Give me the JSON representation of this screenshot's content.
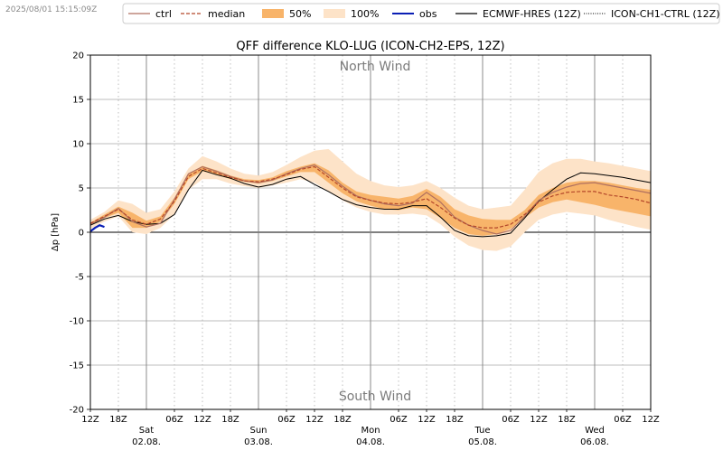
{
  "timestamp": "2025/08/01 15:15:09Z",
  "colors": {
    "band100": "#fde3c8",
    "band50": "#f8b46a",
    "median": "#b4472a",
    "ctrl": "#b07060",
    "obs": "#0b1fb5",
    "hres": "#000000",
    "grid_dotted": "#b0b0b0",
    "day_line": "#7f7f7f"
  },
  "chart_data": {
    "type": "line",
    "title": "QFF difference KLO-LUG (ICON-CH2-EPS, 12Z)",
    "ylabel": "Δp [hPa]",
    "xlabel": "",
    "ylim": [
      -20,
      20
    ],
    "xlim": [
      0,
      120
    ],
    "y_ticks": [
      20,
      15,
      10,
      5,
      0,
      -5,
      -10,
      -15,
      -20
    ],
    "x_ticks": [
      {
        "h": 0,
        "label": "12Z"
      },
      {
        "h": 6,
        "label": "18Z"
      },
      {
        "h": 18,
        "label": "06Z"
      },
      {
        "h": 24,
        "label": "12Z"
      },
      {
        "h": 30,
        "label": "18Z"
      },
      {
        "h": 42,
        "label": "06Z"
      },
      {
        "h": 48,
        "label": "12Z"
      },
      {
        "h": 54,
        "label": "18Z"
      },
      {
        "h": 66,
        "label": "06Z"
      },
      {
        "h": 72,
        "label": "12Z"
      },
      {
        "h": 78,
        "label": "18Z"
      },
      {
        "h": 90,
        "label": "06Z"
      },
      {
        "h": 96,
        "label": "12Z"
      },
      {
        "h": 102,
        "label": "18Z"
      },
      {
        "h": 114,
        "label": "06Z"
      },
      {
        "h": 120,
        "label": "12Z"
      }
    ],
    "day_labels": [
      {
        "h": 12,
        "day": "Sat",
        "date": "02.08."
      },
      {
        "h": 36,
        "day": "Sun",
        "date": "03.08."
      },
      {
        "h": 60,
        "day": "Mon",
        "date": "04.08."
      },
      {
        "h": 84,
        "day": "Tue",
        "date": "05.08."
      },
      {
        "h": 108,
        "day": "Wed",
        "date": "06.08."
      }
    ],
    "annotations": {
      "north": "North Wind",
      "south": "South Wind",
      "divider_h": 60
    },
    "legend": [
      {
        "key": "ctrl",
        "label": "ctrl"
      },
      {
        "key": "median",
        "label": "median"
      },
      {
        "key": "band50",
        "label": "50%"
      },
      {
        "key": "band100",
        "label": "100%"
      },
      {
        "key": "obs",
        "label": "obs"
      },
      {
        "key": "hres",
        "label": "ECMWF-HRES (12Z)"
      },
      {
        "key": "ch1",
        "label": "ICON-CH1-CTRL (12Z)"
      }
    ],
    "x": [
      0,
      3,
      6,
      9,
      12,
      15,
      18,
      21,
      24,
      27,
      30,
      33,
      36,
      39,
      42,
      45,
      48,
      51,
      54,
      57,
      60,
      63,
      66,
      69,
      72,
      75,
      78,
      81,
      84,
      87,
      90,
      93,
      96,
      99,
      102,
      105,
      108,
      111,
      114,
      117,
      120
    ],
    "series": [
      {
        "name": "100% min",
        "values": [
          0.4,
          1.2,
          1.8,
          0.0,
          -0.2,
          0.5,
          2.0,
          4.8,
          6.0,
          6.0,
          5.5,
          5.2,
          5.0,
          5.3,
          5.6,
          6.0,
          5.6,
          4.6,
          3.6,
          2.8,
          2.3,
          2.0,
          2.0,
          2.1,
          1.9,
          0.9,
          -0.5,
          -1.5,
          -2.0,
          -2.1,
          -1.6,
          0.0,
          1.4,
          2.0,
          2.3,
          2.1,
          1.9,
          1.4,
          1.0,
          0.6,
          0.3
        ]
      },
      {
        "name": "100% max",
        "values": [
          1.4,
          2.3,
          3.6,
          3.2,
          2.2,
          2.6,
          4.6,
          7.2,
          8.6,
          8.0,
          7.2,
          6.6,
          6.4,
          6.8,
          7.6,
          8.5,
          9.2,
          9.4,
          8.0,
          6.6,
          5.8,
          5.3,
          5.1,
          5.3,
          5.8,
          5.0,
          3.9,
          3.0,
          2.6,
          2.8,
          3.0,
          4.8,
          6.8,
          7.8,
          8.3,
          8.3,
          8.0,
          7.8,
          7.5,
          7.2,
          6.9
        ]
      },
      {
        "name": "50% low",
        "values": [
          0.8,
          1.6,
          2.2,
          0.5,
          0.5,
          1.2,
          3.2,
          6.0,
          6.9,
          6.5,
          6.0,
          5.7,
          5.5,
          5.8,
          6.3,
          6.8,
          6.8,
          5.6,
          4.4,
          3.5,
          3.0,
          2.6,
          2.5,
          2.8,
          2.6,
          1.6,
          0.5,
          -0.2,
          -0.4,
          -0.2,
          0.4,
          1.6,
          2.8,
          3.4,
          3.7,
          3.4,
          3.1,
          2.7,
          2.4,
          2.1,
          1.8
        ]
      },
      {
        "name": "50% high",
        "values": [
          1.1,
          2.0,
          2.9,
          2.2,
          1.3,
          1.8,
          3.9,
          6.6,
          7.5,
          7.0,
          6.4,
          6.0,
          5.9,
          6.2,
          6.9,
          7.4,
          7.8,
          7.0,
          5.6,
          4.6,
          4.2,
          4.0,
          3.8,
          4.1,
          4.9,
          4.0,
          2.6,
          1.9,
          1.5,
          1.4,
          1.4,
          2.5,
          4.2,
          5.0,
          5.6,
          5.8,
          5.8,
          5.6,
          5.3,
          5.0,
          4.8
        ]
      },
      {
        "name": "median",
        "values": [
          1.0,
          1.8,
          2.6,
          1.4,
          0.9,
          1.5,
          3.5,
          6.3,
          7.2,
          6.7,
          6.2,
          5.8,
          5.7,
          6.0,
          6.5,
          7.1,
          7.4,
          6.2,
          5.0,
          4.0,
          3.6,
          3.3,
          3.2,
          3.4,
          3.8,
          2.8,
          1.6,
          0.8,
          0.5,
          0.5,
          0.9,
          2.0,
          3.4,
          4.1,
          4.5,
          4.6,
          4.6,
          4.2,
          4.0,
          3.7,
          3.3
        ]
      },
      {
        "name": "ctrl",
        "values": [
          0.9,
          1.7,
          2.7,
          1.2,
          0.6,
          1.0,
          3.7,
          6.6,
          7.4,
          6.9,
          6.3,
          5.8,
          5.6,
          5.9,
          6.6,
          7.2,
          7.6,
          6.5,
          5.2,
          4.1,
          3.6,
          3.2,
          3.0,
          3.3,
          4.5,
          3.4,
          1.7,
          0.8,
          0.2,
          -0.2,
          0.2,
          1.8,
          3.6,
          4.5,
          5.1,
          5.5,
          5.6,
          5.3,
          5.0,
          4.7,
          4.4
        ]
      },
      {
        "name": "ECMWF-HRES (12Z)",
        "values": [
          0.8,
          1.5,
          1.9,
          1.2,
          0.9,
          1.0,
          2.0,
          4.8,
          7.0,
          6.5,
          6.1,
          5.5,
          5.1,
          5.4,
          6.0,
          6.3,
          5.4,
          4.6,
          3.7,
          3.1,
          2.8,
          2.6,
          2.6,
          3.0,
          3.0,
          1.7,
          0.2,
          -0.4,
          -0.5,
          -0.4,
          -0.1,
          1.6,
          3.5,
          4.8,
          6.0,
          6.7,
          6.6,
          6.4,
          6.2,
          5.9,
          5.6
        ]
      }
    ],
    "obs": {
      "x": [
        0,
        1,
        2,
        3
      ],
      "values": [
        0.1,
        0.5,
        0.8,
        0.6
      ]
    }
  }
}
